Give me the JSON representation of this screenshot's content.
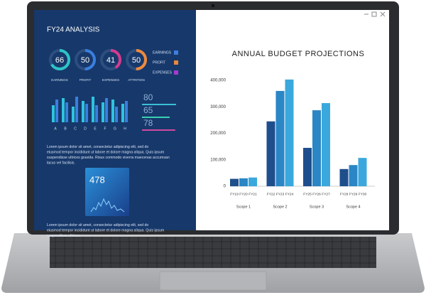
{
  "dashboard": {
    "title": "FY24 ANALYSIS",
    "gauges": [
      {
        "label": "EARNINGS",
        "value": 66,
        "color": "#2ec4c6"
      },
      {
        "label": "PROFIT",
        "value": 50,
        "color": "#3a7fe0"
      },
      {
        "label": "EXPENSES",
        "value": 41,
        "color": "#d43a8f"
      },
      {
        "label": "ATTRITION",
        "value": 50,
        "color": "#f08a3c"
      }
    ],
    "legend": [
      {
        "label": "EARNINGS",
        "color": "#3a7fe0"
      },
      {
        "label": "PROFIT",
        "color": "#e8893a"
      },
      {
        "label": "EXPENSES",
        "color": "#a23bd0"
      }
    ],
    "mini_chart": {
      "categories": [
        "A",
        "B",
        "C",
        "D",
        "E",
        "F",
        "G",
        "H"
      ],
      "series": [
        {
          "color": "#2ec4e0",
          "values": [
            60,
            85,
            55,
            75,
            90,
            70,
            80,
            65
          ]
        },
        {
          "color": "#3a7fe0",
          "values": [
            80,
            70,
            90,
            65,
            60,
            85,
            55,
            75
          ]
        }
      ],
      "ylim": [
        0,
        100
      ]
    },
    "meters": [
      {
        "value": 80,
        "color": "#3ac0d8"
      },
      {
        "value": 65,
        "color": "#3ad0b0"
      },
      {
        "value": 78,
        "color": "#d04aa0"
      }
    ],
    "meter_lim": [
      0,
      100
    ],
    "paragraphs": [
      "Lorem ipsum dolor sit amet, consectetur adipiscing elit, sed do eiusmod tempor incididunt ut labore et dolore magna aliqua. Quis ipsum suspendisse ultrices gravida. Risus commodo viverra maecenas accumsan lacus vel facilisis.",
      "Lorem ipsum dolor sit amet, consectetur adipiscing elit, sed do eiusmod tempor incididunt ut labore et dolore magna aliqua. Quis ipsum suspendisse ultrices"
    ],
    "card_value": 478
  },
  "chart_data": {
    "type": "bar",
    "title": "ANNUAL BUDGET PROJECTIONS",
    "colors": [
      "#1f4e8c",
      "#2b86c5",
      "#3aa8dc"
    ],
    "groups": [
      {
        "name": "Scope 1",
        "categories": [
          "FY19",
          "FY20",
          "FY21"
        ],
        "values": [
          28000,
          30000,
          33000
        ]
      },
      {
        "name": "Scope 2",
        "categories": [
          "FY22",
          "FY23",
          "FY24"
        ],
        "values": [
          245000,
          360000,
          403000
        ]
      },
      {
        "name": "Scope 3",
        "categories": [
          "FY25",
          "FY26",
          "FY27"
        ],
        "values": [
          145000,
          287000,
          314000
        ]
      },
      {
        "name": "Scope 4",
        "categories": [
          "FY28",
          "FY29",
          "FY30"
        ],
        "values": [
          65000,
          80000,
          107000
        ]
      }
    ],
    "ylim": [
      0,
      400000
    ],
    "yticks": [
      0,
      {
        "value": 100000,
        "label": "100,000"
      },
      {
        "value": 200000,
        "label": "200,000"
      },
      {
        "value": 300000,
        "label": "300,000"
      },
      {
        "value": 400000,
        "label": "400,000"
      }
    ]
  }
}
